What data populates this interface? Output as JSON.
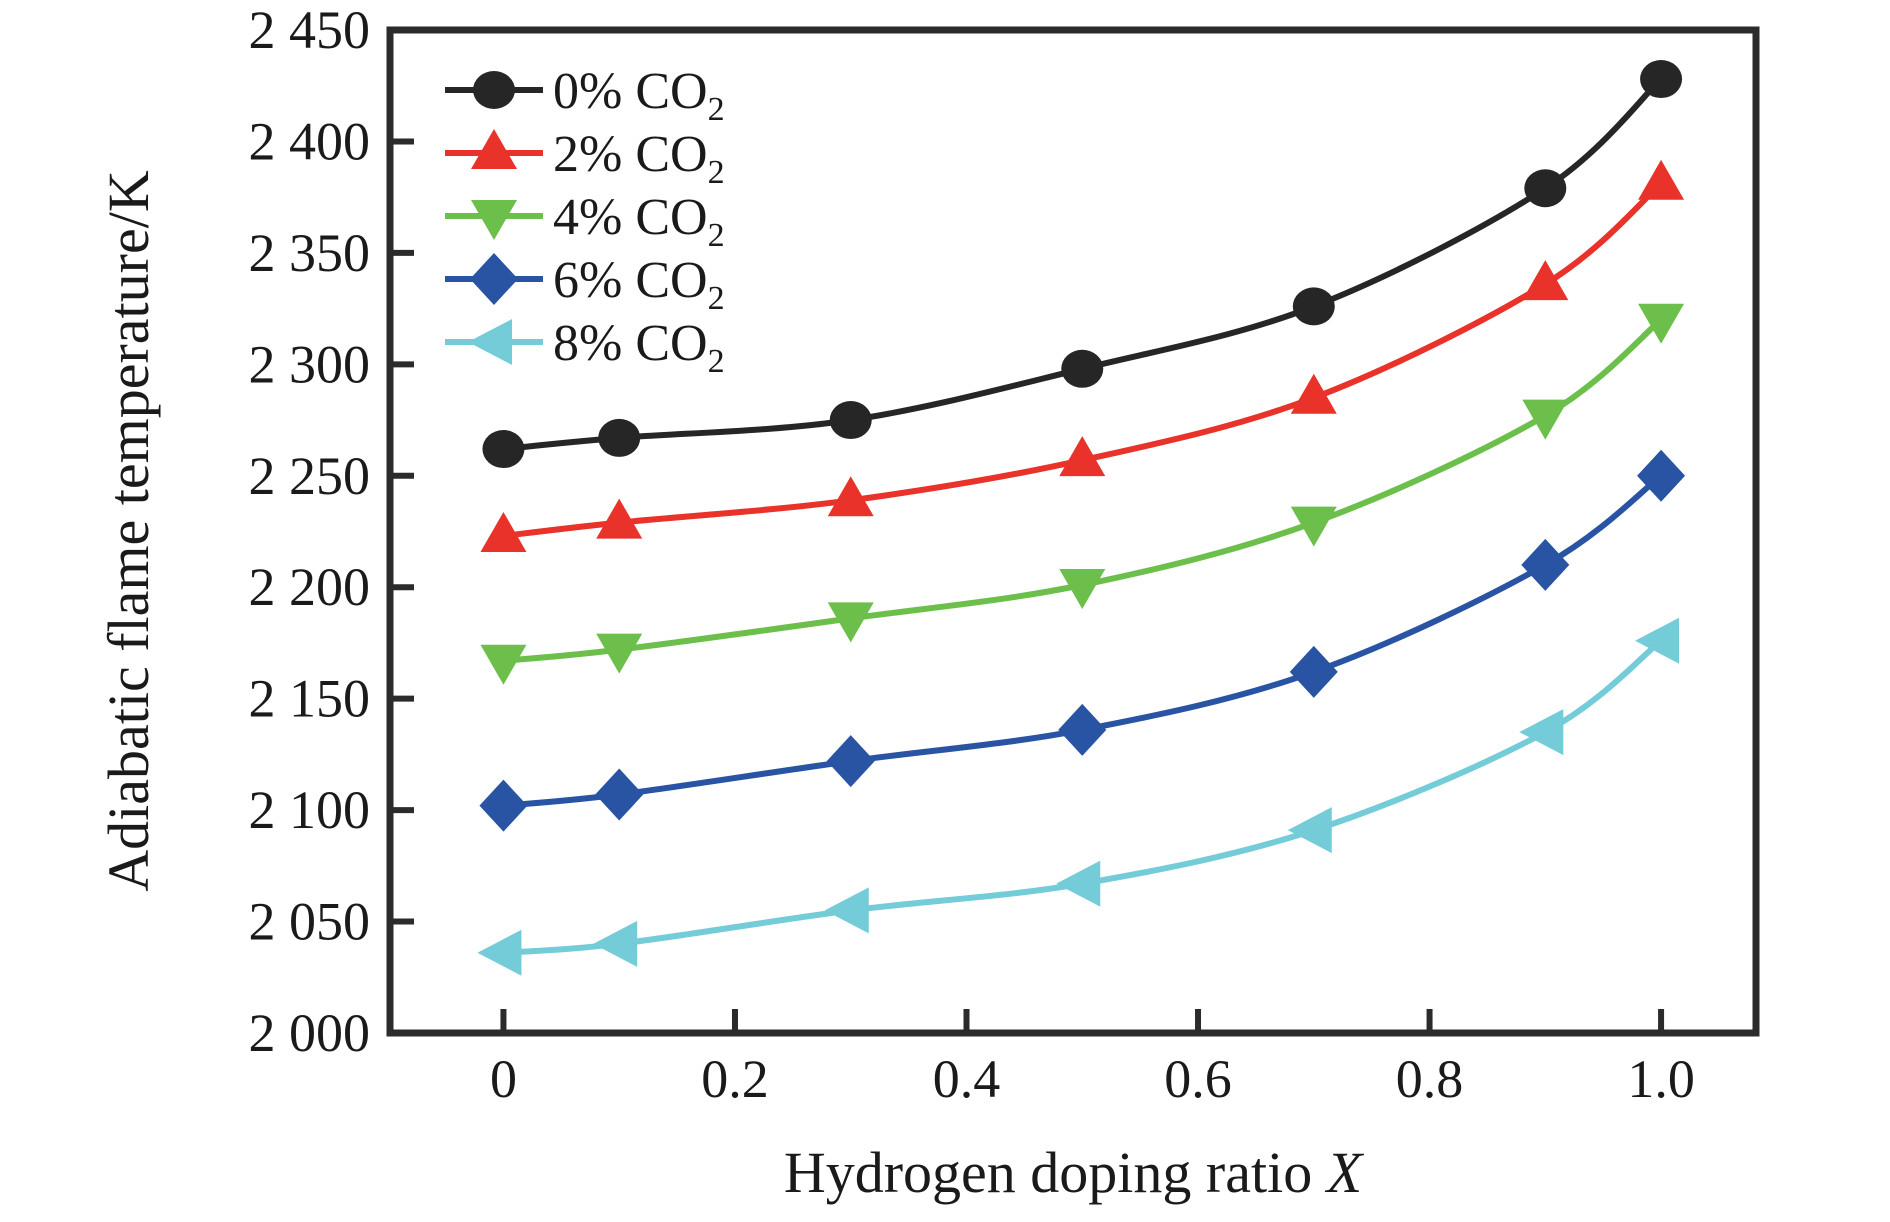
{
  "figure": {
    "xlabel_main": "Hydrogen doping ratio ",
    "xlabel_var": "X",
    "ylabel": "Adiabatic flame temperature/K"
  },
  "chart_data": {
    "type": "line",
    "title": "",
    "xlabel": "Hydrogen doping ratio X",
    "ylabel": "Adiabatic flame temperature/K",
    "x": [
      0,
      0.1,
      0.3,
      0.5,
      0.7,
      0.9,
      1.0
    ],
    "series": [
      {
        "name": "0% CO2",
        "legend_text": "0% CO",
        "legend_sub": "2",
        "color": "#262626",
        "marker": "circle",
        "values": [
          2262,
          2267,
          2275,
          2298,
          2326,
          2379,
          2428
        ]
      },
      {
        "name": "2% CO2",
        "legend_text": "2% CO",
        "legend_sub": "2",
        "color": "#e8322a",
        "marker": "triangle-up",
        "values": [
          2223,
          2229,
          2239,
          2257,
          2285,
          2336,
          2381
        ]
      },
      {
        "name": "4% CO2",
        "legend_text": "4% CO",
        "legend_sub": "2",
        "color": "#6bbf4a",
        "marker": "triangle-down",
        "values": [
          2167,
          2172,
          2186,
          2201,
          2229,
          2277,
          2320
        ]
      },
      {
        "name": "6% CO2",
        "legend_text": "6% CO",
        "legend_sub": "2",
        "color": "#2954a3",
        "marker": "diamond",
        "values": [
          2102,
          2107,
          2122,
          2136,
          2162,
          2210,
          2250
        ]
      },
      {
        "name": "8% CO2",
        "legend_text": "8% CO",
        "legend_sub": "2",
        "color": "#73ccd8",
        "marker": "triangle-left",
        "values": [
          2036,
          2040,
          2055,
          2067,
          2091,
          2135,
          2176
        ]
      }
    ],
    "x_ticks": [
      {
        "value": 0,
        "label": "0"
      },
      {
        "value": 0.2,
        "label": "0.2"
      },
      {
        "value": 0.4,
        "label": "0.4"
      },
      {
        "value": 0.6,
        "label": "0.6"
      },
      {
        "value": 0.8,
        "label": "0.8"
      },
      {
        "value": 1.0,
        "label": "1.0"
      }
    ],
    "y_ticks": [
      {
        "value": 2000,
        "label": "2 000"
      },
      {
        "value": 2050,
        "label": "2 050"
      },
      {
        "value": 2100,
        "label": "2 100"
      },
      {
        "value": 2150,
        "label": "2 150"
      },
      {
        "value": 2200,
        "label": "2 200"
      },
      {
        "value": 2250,
        "label": "2 250"
      },
      {
        "value": 2300,
        "label": "2 300"
      },
      {
        "value": 2350,
        "label": "2 350"
      },
      {
        "value": 2400,
        "label": "2 400"
      },
      {
        "value": 2450,
        "label": "2 450"
      }
    ],
    "xlim": [
      -0.098,
      1.082
    ],
    "ylim": [
      2000,
      2450
    ],
    "grid": false,
    "legend_position": "top-left",
    "axis_color": "#2b2b2b",
    "background": "#ffffff"
  }
}
